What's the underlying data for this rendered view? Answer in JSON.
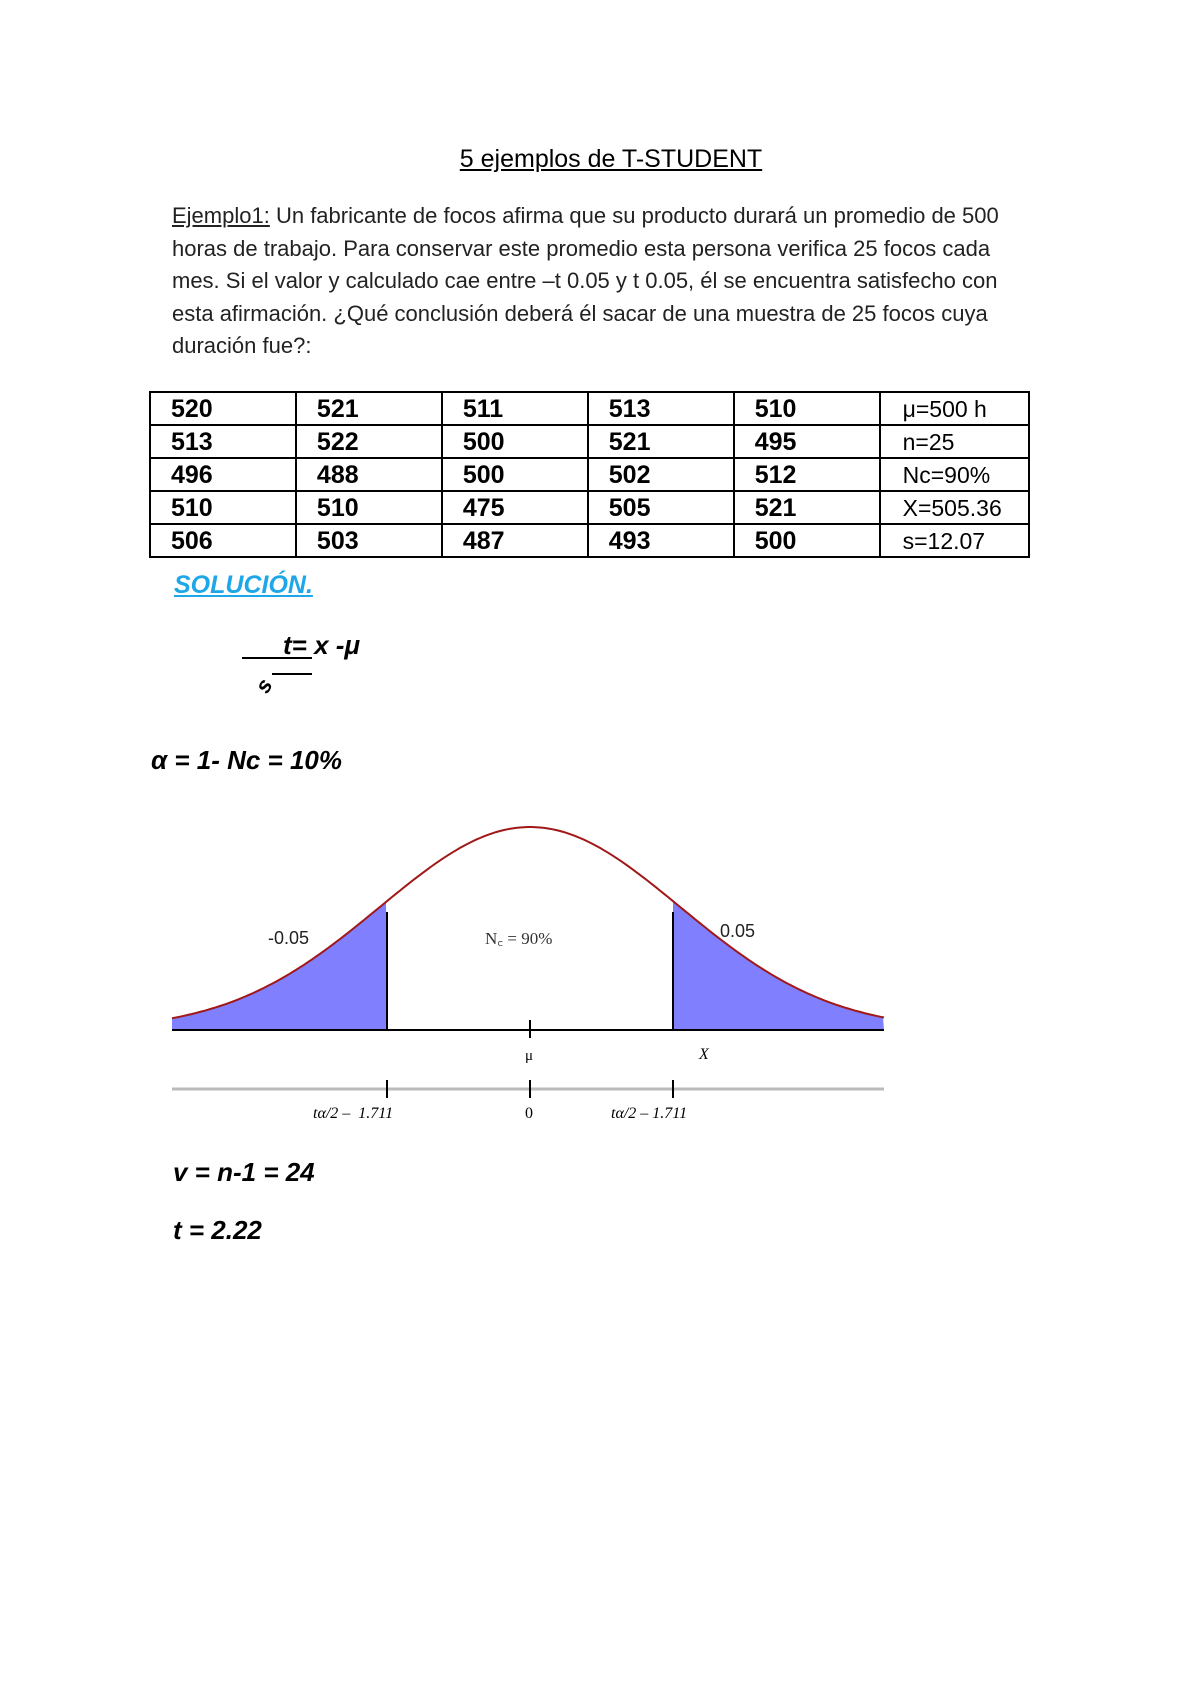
{
  "title": "5 ejemplos de T-STUDENT",
  "example": {
    "label": "Ejemplo1:",
    "text": " Un fabricante de focos afirma que su producto durará un promedio de 500 horas de trabajo. Para conservar este promedio esta persona verifica 25 focos cada mes. Si el valor y calculado cae entre –t 0.05 y t 0.05, él se encuentra satisfecho con esta afirmación. ¿Qué conclusión deberá él sacar de una muestra de 25 focos cuya duración fue?:"
  },
  "table": {
    "rows": [
      [
        "520",
        "521",
        "511",
        "513",
        "510",
        "μ=500 h"
      ],
      [
        "513",
        "522",
        "500",
        "521",
        "495",
        "n=25"
      ],
      [
        "496",
        "488",
        "500",
        "502",
        "512",
        "Nc=90%"
      ],
      [
        "510",
        "510",
        "475",
        "505",
        "521",
        "X=505.36"
      ],
      [
        "506",
        "503",
        "487",
        "493",
        "500",
        "s=12.07"
      ]
    ]
  },
  "solution_heading": "SOLUCIÓN.",
  "formula": {
    "numerator": "t= x -μ",
    "denominator": "s"
  },
  "alpha_line": "α = 1- Nc = 10%",
  "diagram": {
    "left_tail_label": "-0.05",
    "center_label": "N꜀ = 90%",
    "right_tail_label": "0.05",
    "mu_label": "μ",
    "x_label": "X",
    "t_left_label": "tα/2 –  1.711",
    "t_zero_label": "0",
    "t_right_label": "tα/2 – 1.711",
    "tail_color": "#8080ff",
    "curve_color": "#a01818"
  },
  "v_line": "v = n-1 = 24",
  "t_line": "t = 2.22"
}
